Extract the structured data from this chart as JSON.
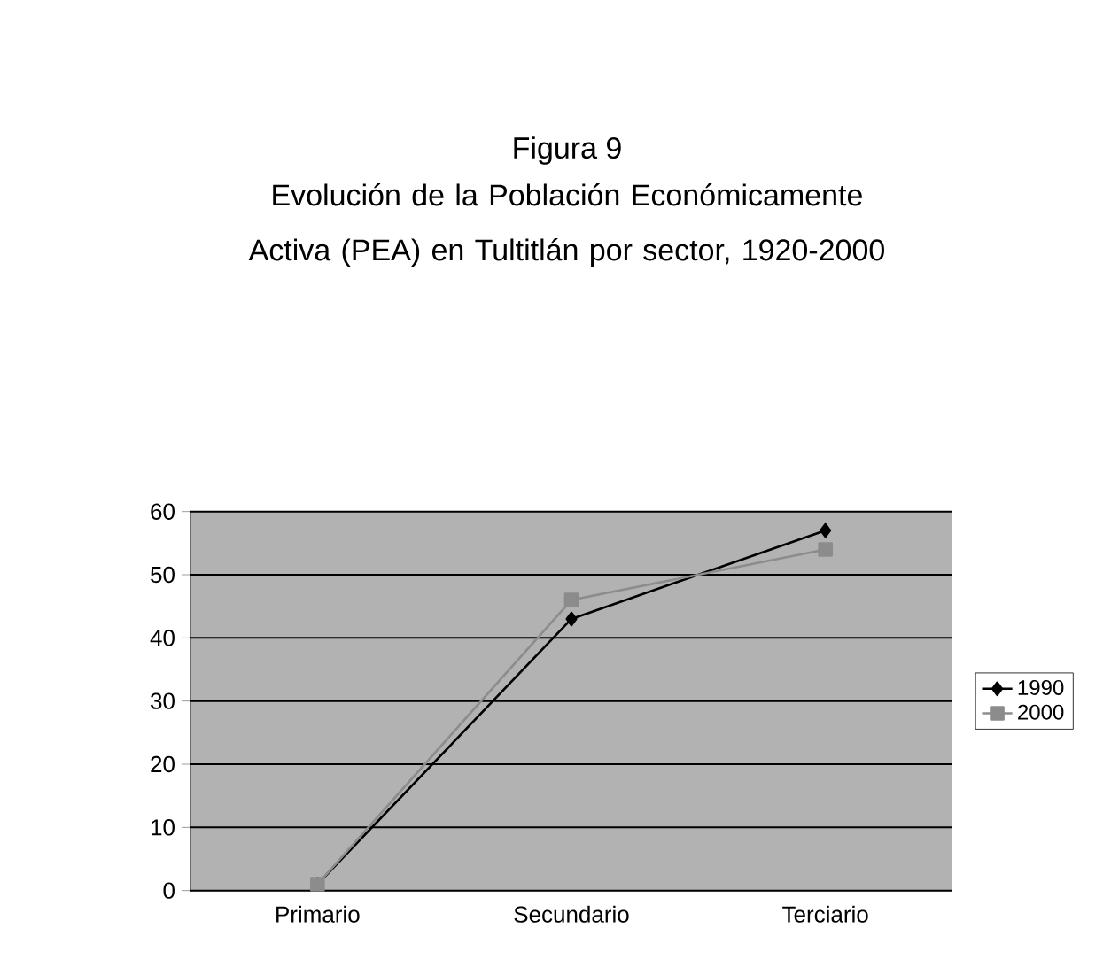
{
  "chart_data": {
    "type": "line",
    "title": "Figura 9",
    "subtitle": "Evolución de la Población Económicamente Activa (PEA) en Tultitlán por sector, 1920-2000",
    "categories": [
      "Primario",
      "Secundario",
      "Terciario"
    ],
    "series": [
      {
        "name": "1990",
        "color": "#000000",
        "marker": "diamond",
        "values": [
          1,
          43,
          57
        ]
      },
      {
        "name": "2000",
        "color": "#8c8c8c",
        "marker": "square",
        "values": [
          1,
          46,
          54
        ]
      }
    ],
    "ylim": [
      0,
      60
    ],
    "yticks": [
      0,
      10,
      20,
      30,
      40,
      50,
      60
    ],
    "grid": "y",
    "legend": "right",
    "line_style": "solid"
  }
}
